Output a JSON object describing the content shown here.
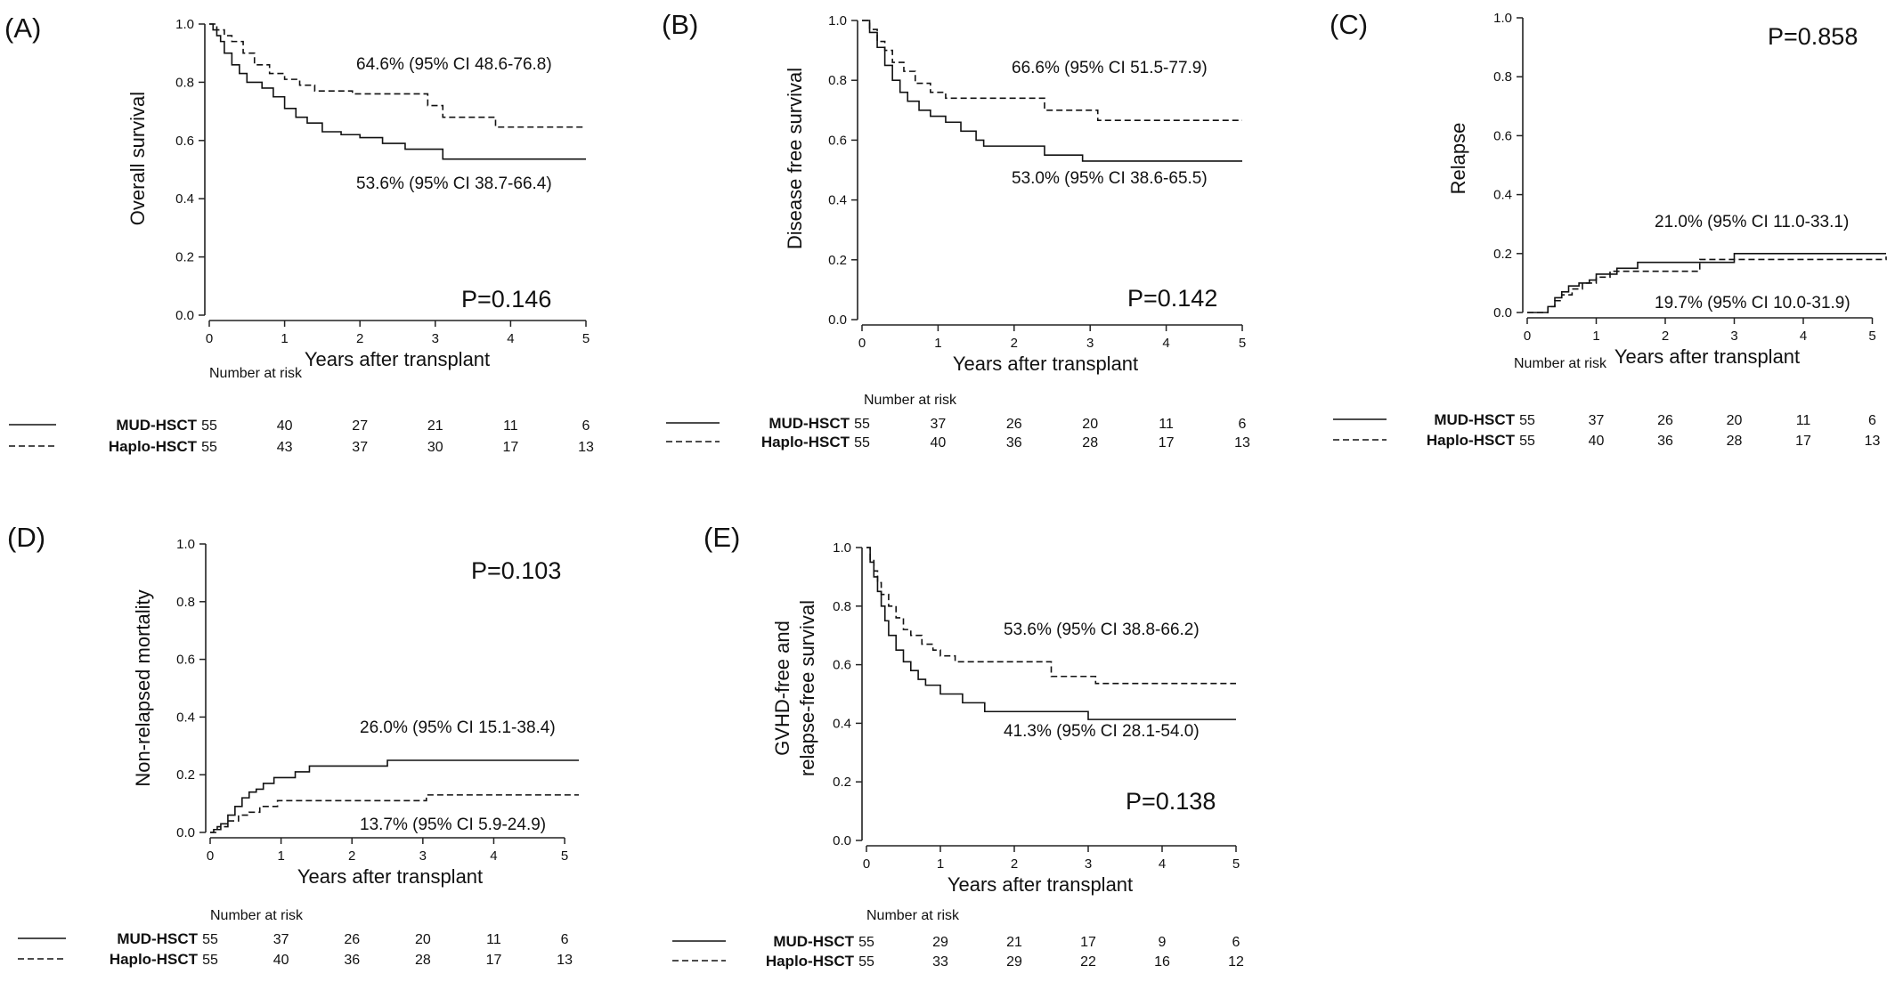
{
  "chart_data": [
    {
      "type": "line",
      "panel_label": "(A)",
      "ylabel": "Overall survival",
      "xlabel": "Years after transplant",
      "xlim": [
        0,
        5
      ],
      "ylim": [
        0,
        1
      ],
      "x_ticks": [
        0,
        1,
        2,
        3,
        4,
        5
      ],
      "y_ticks": [
        "0.0",
        "0.2",
        "0.4",
        "0.6",
        "0.8",
        "1.0"
      ],
      "grid": false,
      "p_value": "P=0.146",
      "annotations": [
        "64.6% (95% CI 48.6-76.8)",
        "53.6% (95% CI 38.7-66.4)"
      ],
      "series": [
        {
          "name": "MUD-HSCT",
          "line_style": "solid",
          "x": [
            0,
            0.05,
            0.1,
            0.15,
            0.2,
            0.3,
            0.4,
            0.5,
            0.7,
            0.85,
            1.0,
            1.15,
            1.3,
            1.5,
            1.75,
            2.0,
            2.3,
            2.6,
            3.1,
            5.0
          ],
          "y": [
            1.0,
            0.98,
            0.96,
            0.94,
            0.9,
            0.86,
            0.83,
            0.8,
            0.78,
            0.75,
            0.71,
            0.68,
            0.66,
            0.63,
            0.62,
            0.61,
            0.59,
            0.57,
            0.536,
            0.536
          ]
        },
        {
          "name": "Haplo-HSCT",
          "line_style": "dashed",
          "x": [
            0,
            0.1,
            0.2,
            0.3,
            0.45,
            0.6,
            0.8,
            1.0,
            1.2,
            1.4,
            1.9,
            2.9,
            3.1,
            3.8,
            5.0
          ],
          "y": [
            1.0,
            0.98,
            0.96,
            0.94,
            0.9,
            0.86,
            0.83,
            0.81,
            0.79,
            0.77,
            0.76,
            0.72,
            0.68,
            0.646,
            0.646
          ]
        }
      ],
      "risk_table": {
        "title": "Number at risk",
        "rows": [
          {
            "name": "MUD-HSCT",
            "values": [
              "55",
              "40",
              "27",
              "21",
              "11",
              "6"
            ]
          },
          {
            "name": "Haplo-HSCT",
            "values": [
              "55",
              "43",
              "37",
              "30",
              "17",
              "13"
            ]
          }
        ]
      }
    },
    {
      "type": "line",
      "panel_label": "(B)",
      "ylabel": "Disease free survival",
      "xlabel": "Years after transplant",
      "xlim": [
        0,
        5
      ],
      "ylim": [
        0,
        1
      ],
      "x_ticks": [
        0,
        1,
        2,
        3,
        4,
        5
      ],
      "y_ticks": [
        "0.0",
        "0.2",
        "0.4",
        "0.6",
        "0.8",
        "1.0"
      ],
      "grid": false,
      "p_value": "P=0.142",
      "annotations": [
        "66.6% (95% CI 51.5-77.9)",
        "53.0% (95% CI 38.6-65.5)"
      ],
      "series": [
        {
          "name": "MUD-HSCT",
          "line_style": "solid",
          "x": [
            0,
            0.1,
            0.2,
            0.3,
            0.4,
            0.5,
            0.6,
            0.75,
            0.9,
            1.1,
            1.3,
            1.5,
            1.6,
            2.4,
            2.9,
            5.0
          ],
          "y": [
            1.0,
            0.96,
            0.91,
            0.85,
            0.8,
            0.76,
            0.73,
            0.7,
            0.68,
            0.66,
            0.63,
            0.6,
            0.58,
            0.55,
            0.53,
            0.53
          ]
        },
        {
          "name": "Haplo-HSCT",
          "line_style": "dashed",
          "x": [
            0,
            0.1,
            0.2,
            0.3,
            0.4,
            0.55,
            0.7,
            0.9,
            1.1,
            1.5,
            2.4,
            3.1,
            5.0
          ],
          "y": [
            1.0,
            0.97,
            0.93,
            0.9,
            0.86,
            0.83,
            0.79,
            0.76,
            0.74,
            0.74,
            0.7,
            0.666,
            0.666
          ]
        }
      ],
      "risk_table": {
        "title": "Number at risk",
        "rows": [
          {
            "name": "MUD-HSCT",
            "values": [
              "55",
              "37",
              "26",
              "20",
              "11",
              "6"
            ]
          },
          {
            "name": "Haplo-HSCT",
            "values": [
              "55",
              "40",
              "36",
              "28",
              "17",
              "13"
            ]
          }
        ]
      }
    },
    {
      "type": "line",
      "panel_label": "(C)",
      "ylabel": "Relapse",
      "xlabel": "Years after transplant",
      "xlim": [
        0,
        5.2
      ],
      "ylim": [
        0,
        1
      ],
      "x_ticks": [
        0,
        1,
        2,
        3,
        4,
        5
      ],
      "y_ticks": [
        "0.0",
        "0.2",
        "0.4",
        "0.6",
        "0.8",
        "1.0"
      ],
      "grid": false,
      "p_value": "P=0.858",
      "annotations": [
        "21.0% (95% CI 11.0-33.1)",
        "19.7% (95% CI 10.0-31.9)"
      ],
      "series": [
        {
          "name": "MUD-HSCT",
          "line_style": "solid",
          "x": [
            0,
            0.25,
            0.3,
            0.4,
            0.5,
            0.6,
            0.75,
            0.9,
            1.0,
            1.3,
            1.6,
            3.0,
            5.2
          ],
          "y": [
            0,
            0,
            0.02,
            0.05,
            0.07,
            0.09,
            0.1,
            0.11,
            0.13,
            0.15,
            0.17,
            0.2,
            0.2
          ]
        },
        {
          "name": "Haplo-HSCT",
          "line_style": "dashed",
          "x": [
            0,
            0.25,
            0.3,
            0.4,
            0.5,
            0.65,
            0.8,
            1.0,
            1.2,
            1.9,
            2.5,
            5.2
          ],
          "y": [
            0,
            0,
            0.02,
            0.04,
            0.06,
            0.08,
            0.1,
            0.12,
            0.14,
            0.14,
            0.18,
            0.19
          ]
        }
      ],
      "risk_table": {
        "title": "Number at risk",
        "rows": [
          {
            "name": "MUD-HSCT",
            "values": [
              "55",
              "37",
              "26",
              "20",
              "11",
              "6"
            ]
          },
          {
            "name": "Haplo-HSCT",
            "values": [
              "55",
              "40",
              "36",
              "28",
              "17",
              "13"
            ]
          }
        ]
      }
    },
    {
      "type": "line",
      "panel_label": "(D)",
      "ylabel": "Non-relapsed mortality",
      "xlabel": "Years after transplant",
      "xlim": [
        0,
        5.2
      ],
      "ylim": [
        0,
        1
      ],
      "x_ticks": [
        0,
        1,
        2,
        3,
        4,
        5
      ],
      "y_ticks": [
        "0.0",
        "0.2",
        "0.4",
        "0.6",
        "0.8",
        "1.0"
      ],
      "grid": false,
      "p_value": "P=0.103",
      "annotations": [
        "26.0% (95% CI 15.1-38.4)",
        "13.7% (95% CI 5.9-24.9)"
      ],
      "series": [
        {
          "name": "MUD-HSCT",
          "line_style": "solid",
          "x": [
            0,
            0.05,
            0.15,
            0.25,
            0.35,
            0.45,
            0.55,
            0.65,
            0.75,
            0.9,
            1.2,
            1.4,
            2.5,
            5.2
          ],
          "y": [
            0,
            0.01,
            0.03,
            0.06,
            0.09,
            0.12,
            0.14,
            0.15,
            0.17,
            0.19,
            0.21,
            0.23,
            0.25,
            0.25
          ]
        },
        {
          "name": "Haplo-HSCT",
          "line_style": "dashed",
          "x": [
            0,
            0.1,
            0.25,
            0.4,
            0.55,
            0.7,
            0.95,
            3.05,
            5.2
          ],
          "y": [
            0,
            0.02,
            0.04,
            0.06,
            0.07,
            0.09,
            0.11,
            0.13,
            0.13
          ]
        }
      ],
      "risk_table": {
        "title": "Number at risk",
        "rows": [
          {
            "name": "MUD-HSCT",
            "values": [
              "55",
              "37",
              "26",
              "20",
              "11",
              "6"
            ]
          },
          {
            "name": "Haplo-HSCT",
            "values": [
              "55",
              "40",
              "36",
              "28",
              "17",
              "13"
            ]
          }
        ]
      }
    },
    {
      "type": "line",
      "panel_label": "(E)",
      "ylabel": "GVHD-free and relapse-free survival",
      "ylabel_lines": [
        "GVHD-free and",
        "relapse-free survival"
      ],
      "xlabel": "Years after transplant",
      "xlim": [
        0,
        5
      ],
      "ylim": [
        0,
        1
      ],
      "x_ticks": [
        0,
        1,
        2,
        3,
        4,
        5
      ],
      "y_ticks": [
        "0.0",
        "0.2",
        "0.4",
        "0.6",
        "0.8",
        "1.0"
      ],
      "grid": false,
      "p_value": "P=0.138",
      "annotations": [
        "53.6% (95% CI 38.8-66.2)",
        "41.3% (95% CI 28.1-54.0)"
      ],
      "series": [
        {
          "name": "MUD-HSCT",
          "line_style": "solid",
          "x": [
            0,
            0.05,
            0.1,
            0.15,
            0.2,
            0.25,
            0.3,
            0.4,
            0.5,
            0.6,
            0.7,
            0.8,
            1.0,
            1.3,
            1.6,
            3.0,
            5.0
          ],
          "y": [
            1.0,
            0.95,
            0.9,
            0.85,
            0.8,
            0.75,
            0.7,
            0.65,
            0.61,
            0.58,
            0.55,
            0.53,
            0.5,
            0.47,
            0.44,
            0.413,
            0.413
          ]
        },
        {
          "name": "Haplo-HSCT",
          "line_style": "dashed",
          "x": [
            0,
            0.05,
            0.1,
            0.15,
            0.2,
            0.3,
            0.4,
            0.5,
            0.6,
            0.75,
            0.9,
            1.0,
            1.2,
            2.5,
            3.1,
            5.0
          ],
          "y": [
            1.0,
            0.96,
            0.92,
            0.88,
            0.84,
            0.8,
            0.76,
            0.72,
            0.7,
            0.67,
            0.65,
            0.63,
            0.61,
            0.56,
            0.536,
            0.536
          ]
        }
      ],
      "risk_table": {
        "title": "Number at risk",
        "rows": [
          {
            "name": "MUD-HSCT",
            "values": [
              "55",
              "29",
              "21",
              "17",
              "9",
              "6"
            ]
          },
          {
            "name": "Haplo-HSCT",
            "values": [
              "55",
              "33",
              "29",
              "22",
              "16",
              "12"
            ]
          }
        ]
      }
    }
  ]
}
